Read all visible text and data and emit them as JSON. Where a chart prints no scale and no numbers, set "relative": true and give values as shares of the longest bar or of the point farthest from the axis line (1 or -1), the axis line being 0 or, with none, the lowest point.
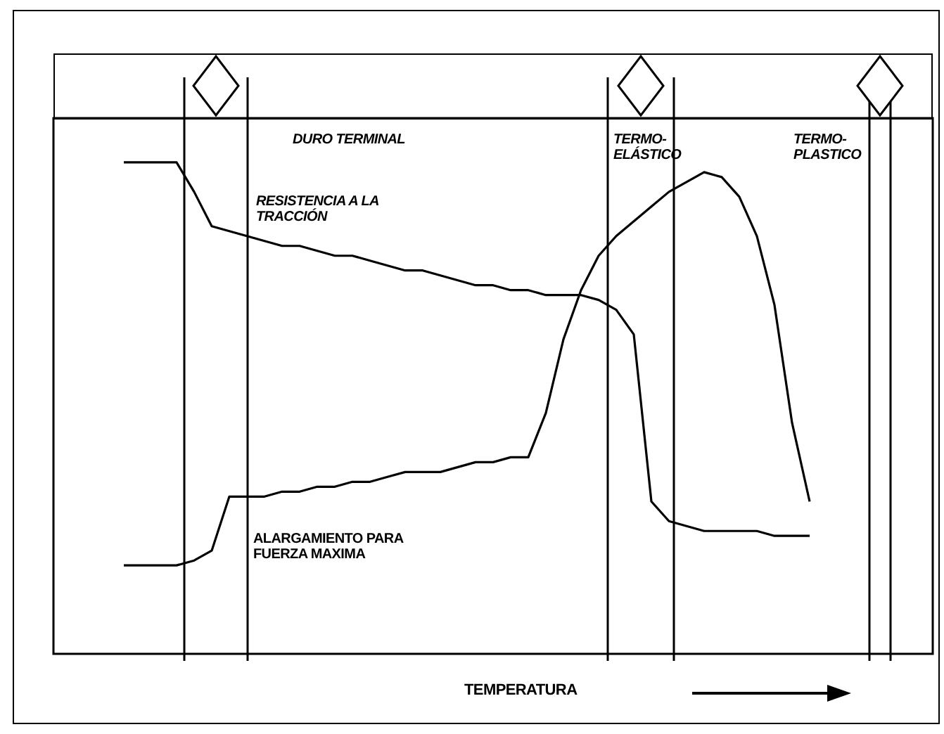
{
  "chart_data": {
    "type": "line",
    "relative": true,
    "xlabel": "TEMPERATURA",
    "grid": false,
    "legend": false,
    "marker": "none",
    "line_style": "solid",
    "annotations": [
      "DURO TERMINAL",
      "TERMO-\nELÁSTICO",
      "TERMO-\nPLASTICO"
    ],
    "categories": [
      null,
      null,
      null,
      null,
      null,
      null,
      null,
      null,
      null,
      null,
      null,
      null,
      null,
      null,
      null,
      null,
      null,
      null,
      null,
      null,
      null,
      null,
      null,
      null,
      null,
      null,
      null,
      null,
      null,
      null,
      null,
      null,
      null,
      null,
      null,
      null,
      null,
      null,
      null,
      null,
      null,
      null,
      null,
      null,
      null,
      null,
      null,
      null,
      null,
      null,
      null
    ],
    "series": [
      {
        "name": "RESISTENCIA A LA TRACCIÓN",
        "color": "#000000",
        "values": [
          null,
          null,
          null,
          null,
          1.0,
          1.0,
          1.0,
          1.0,
          0.94,
          0.87,
          0.86,
          0.85,
          0.84,
          0.83,
          0.83,
          0.82,
          0.81,
          0.81,
          0.8,
          0.79,
          0.78,
          0.78,
          0.77,
          0.76,
          0.75,
          0.75,
          0.74,
          0.74,
          0.73,
          0.73,
          0.73,
          0.72,
          0.7,
          0.65,
          0.31,
          0.27,
          0.26,
          0.25,
          0.25,
          0.25,
          0.25,
          0.24,
          0.24,
          0.24,
          null,
          null,
          null,
          null,
          null,
          null,
          null
        ]
      },
      {
        "name": "ALARGAMIENTO PARA FUERZA MAXIMA",
        "color": "#000000",
        "values": [
          null,
          null,
          null,
          null,
          0.18,
          0.18,
          0.18,
          0.18,
          0.19,
          0.21,
          0.32,
          0.32,
          0.32,
          0.33,
          0.33,
          0.34,
          0.34,
          0.35,
          0.35,
          0.36,
          0.37,
          0.37,
          0.37,
          0.38,
          0.39,
          0.39,
          0.4,
          0.4,
          0.49,
          0.64,
          0.74,
          0.81,
          0.85,
          0.88,
          0.91,
          0.94,
          0.96,
          0.98,
          0.97,
          0.93,
          0.85,
          0.71,
          0.47,
          0.31,
          null,
          null,
          null,
          null,
          null,
          null,
          null
        ]
      }
    ]
  }
}
